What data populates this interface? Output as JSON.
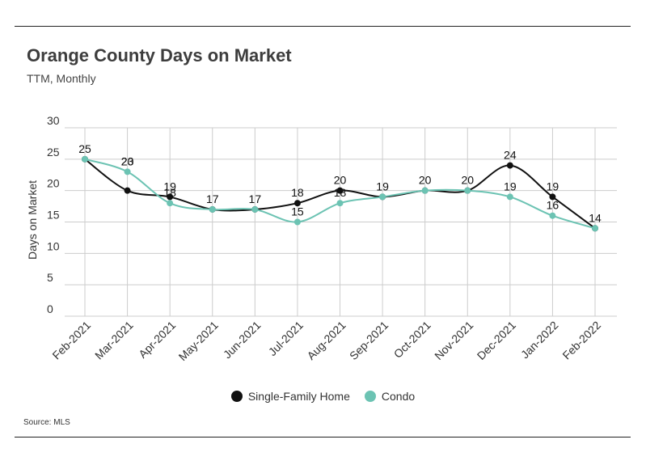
{
  "header": {
    "title": "Orange County Days on Market",
    "subtitle": "TTM, Monthly"
  },
  "footer": {
    "source": "Source:  MLS"
  },
  "colors": {
    "series_1": "#111111",
    "series_2": "#6cc3b3",
    "grid": "#cccccc"
  },
  "chart_data": {
    "type": "line",
    "title": "Orange County Days on Market",
    "subtitle": "TTM, Monthly",
    "xlabel": "",
    "ylabel": "Days on Market",
    "ylim": [
      0,
      30
    ],
    "yticks": [
      0,
      5,
      10,
      15,
      20,
      25,
      30
    ],
    "grid": true,
    "legend_position": "bottom",
    "categories": [
      "Feb-2021",
      "Mar-2021",
      "Apr-2021",
      "May-2021",
      "Jun-2021",
      "Jul-2021",
      "Aug-2021",
      "Sep-2021",
      "Oct-2021",
      "Nov-2021",
      "Dec-2021",
      "Jan-2022",
      "Feb-2022"
    ],
    "series": [
      {
        "name": "Single-Family Home",
        "values": [
          25,
          20,
          19,
          17,
          17,
          18,
          20,
          19,
          20,
          20,
          24,
          19,
          14
        ]
      },
      {
        "name": "Condo",
        "values": [
          25,
          23,
          18,
          17,
          17,
          15,
          18,
          19,
          20,
          20,
          19,
          16,
          14
        ]
      }
    ]
  }
}
